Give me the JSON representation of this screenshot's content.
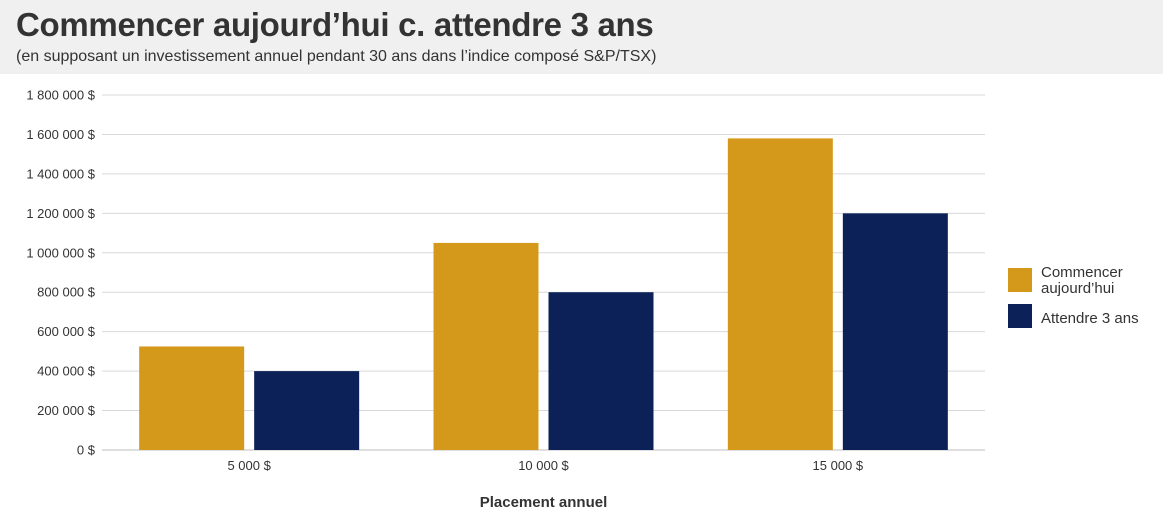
{
  "header": {
    "title": "Commencer aujourd’hui c. attendre 3 ans",
    "subtitle": "(en supposant un investissement annuel pendant 30 ans dans l’indice composé S&P/TSX)"
  },
  "colors": {
    "header_bg": "#f0f0f0",
    "series_today": "#d4991a",
    "series_wait": "#0b2157",
    "grid": "#d9d9d9"
  },
  "chart_data": {
    "type": "bar",
    "title": "Commencer aujourd’hui c. attendre 3 ans",
    "subtitle": "(en supposant un investissement annuel pendant 30 ans dans l’indice composé S&P/TSX)",
    "xlabel": "Placement annuel",
    "ylabel": "",
    "categories": [
      "5 000 $",
      "10 000 $",
      "15 000 $"
    ],
    "series": [
      {
        "name": "Commencer aujourd’hui",
        "color": "#d4991a",
        "values": [
          525000,
          1050000,
          1580000
        ]
      },
      {
        "name": "Attendre 3 ans",
        "color": "#0b2157",
        "values": [
          400000,
          800000,
          1200000
        ]
      }
    ],
    "ylim": [
      0,
      1800000
    ],
    "yticks": [
      0,
      200000,
      400000,
      600000,
      800000,
      1000000,
      1200000,
      1400000,
      1600000,
      1800000
    ],
    "ytick_labels": [
      "0 $",
      "200 000 $",
      "400 000 $",
      "600 000 $",
      "800 000 $",
      "1 000 000 $",
      "1 200 000 $",
      "1 400 000 $",
      "1 600 000 $",
      "1 800 000 $"
    ],
    "legend": {
      "placement": "right",
      "entries": [
        {
          "lines": [
            "Commencer",
            "aujourd’hui"
          ],
          "color": "#d4991a"
        },
        {
          "lines": [
            "Attendre 3 ans"
          ],
          "color": "#0b2157"
        }
      ]
    },
    "grid": true
  }
}
